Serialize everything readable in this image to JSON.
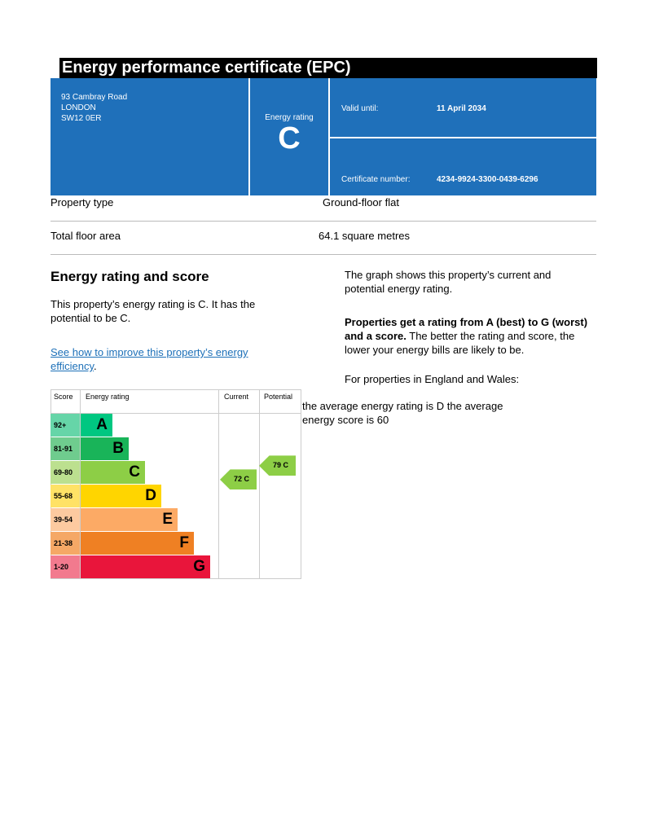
{
  "header": {
    "title": "Energy performance certificate (EPC)"
  },
  "address": {
    "line1": "93 Cambray Road",
    "line2": "LONDON",
    "line3": "SW12 0ER"
  },
  "rating_box": {
    "label": "Energy rating",
    "rating": "C"
  },
  "validity": {
    "label": "Valid until:",
    "value": "11 April 2034"
  },
  "certificate": {
    "label": "Certificate number:",
    "value": "4234-9924-3300-0439-6296"
  },
  "property": {
    "type_label": "Property type",
    "type_value": "Ground-floor flat",
    "area_label": "Total floor area",
    "area_value": "64.1 square metres"
  },
  "section": {
    "heading": "Energy rating and score",
    "intro": "This property’s energy rating is C. It has the potential to be C.",
    "link": "See how to improve this property’s energy efficiency",
    "link_suffix": ".",
    "graph_desc": "The graph shows this property’s current and potential energy rating.",
    "bold_text": "Properties get a rating from A (best) to G (worst) and a score.",
    "rest_text": " The better the rating and score, the lower your energy bills are likely to be.",
    "region": "For properties in England and Wales:",
    "average": "the average energy rating is D the average energy score is 60"
  },
  "chart": {
    "headers": {
      "score": "Score",
      "rating": "Energy rating",
      "current": "Current",
      "potential": "Potential"
    },
    "bands": [
      {
        "score": "92+",
        "letter": "A",
        "color": "#00c781",
        "light": "#66d5a8"
      },
      {
        "score": "81-91",
        "letter": "B",
        "color": "#19b459",
        "light": "#6fcc8e"
      },
      {
        "score": "69-80",
        "letter": "C",
        "color": "#8dce46",
        "light": "#bce08f"
      },
      {
        "score": "55-68",
        "letter": "D",
        "color": "#ffd500",
        "light": "#ffe266"
      },
      {
        "score": "39-54",
        "letter": "E",
        "color": "#fcaa65",
        "light": "#fdcaa0"
      },
      {
        "score": "21-38",
        "letter": "F",
        "color": "#ef8023",
        "light": "#f5a866"
      },
      {
        "score": "1-20",
        "letter": "G",
        "color": "#e9153b",
        "light": "#f27a8e"
      }
    ],
    "current": {
      "score": 72,
      "letter": "C",
      "label": "72  C"
    },
    "potential": {
      "score": 79,
      "letter": "C",
      "label": "79  C"
    }
  }
}
